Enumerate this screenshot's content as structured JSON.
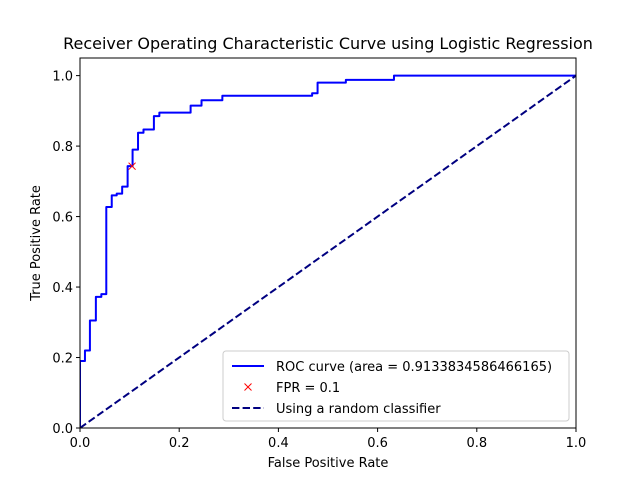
{
  "chart_data": {
    "type": "line",
    "title": "Receiver Operating Characteristic Curve using Logistic Regression",
    "xlabel": "False Positive Rate",
    "ylabel": "True Positive Rate",
    "xlim": [
      0.0,
      1.0
    ],
    "ylim": [
      0.0,
      1.05
    ],
    "xticks": [
      "0.0",
      "0.2",
      "0.4",
      "0.6",
      "0.8",
      "1.0"
    ],
    "yticks": [
      "0.0",
      "0.2",
      "0.4",
      "0.6",
      "0.8",
      "1.0"
    ],
    "xtick_values": [
      0.0,
      0.2,
      0.4,
      0.6,
      0.8,
      1.0
    ],
    "ytick_values": [
      0.0,
      0.2,
      0.4,
      0.6,
      0.8,
      1.0
    ],
    "grid": false,
    "legend_position": "lower-right",
    "series": [
      {
        "name": "ROC curve (area = 0.9133834586466165)",
        "color": "#0000ff",
        "style": "solid",
        "x": [
          0.0,
          0.0,
          0.01,
          0.01,
          0.02,
          0.02,
          0.032,
          0.032,
          0.043,
          0.043,
          0.053,
          0.053,
          0.064,
          0.064,
          0.074,
          0.074,
          0.085,
          0.085,
          0.096,
          0.096,
          0.106,
          0.106,
          0.117,
          0.117,
          0.128,
          0.128,
          0.149,
          0.149,
          0.16,
          0.16,
          0.223,
          0.223,
          0.245,
          0.245,
          0.287,
          0.287,
          0.468,
          0.468,
          0.479,
          0.479,
          0.536,
          0.536,
          0.633,
          0.633,
          1.0
        ],
        "y": [
          0.0,
          0.19,
          0.19,
          0.22,
          0.22,
          0.305,
          0.305,
          0.372,
          0.372,
          0.38,
          0.38,
          0.627,
          0.627,
          0.66,
          0.66,
          0.665,
          0.665,
          0.685,
          0.685,
          0.743,
          0.743,
          0.79,
          0.79,
          0.838,
          0.838,
          0.847,
          0.847,
          0.885,
          0.885,
          0.895,
          0.895,
          0.915,
          0.915,
          0.93,
          0.93,
          0.943,
          0.943,
          0.95,
          0.95,
          0.98,
          0.98,
          0.988,
          0.988,
          1.0,
          1.0
        ]
      },
      {
        "name": "FPR = 0.1",
        "color": "#ff0000",
        "style": "marker-x",
        "x": [
          0.105
        ],
        "y": [
          0.743
        ]
      },
      {
        "name": "Using a random classifier",
        "color": "#000080",
        "style": "dashed",
        "x": [
          0.0,
          1.0
        ],
        "y": [
          0.0,
          1.0
        ]
      }
    ]
  }
}
